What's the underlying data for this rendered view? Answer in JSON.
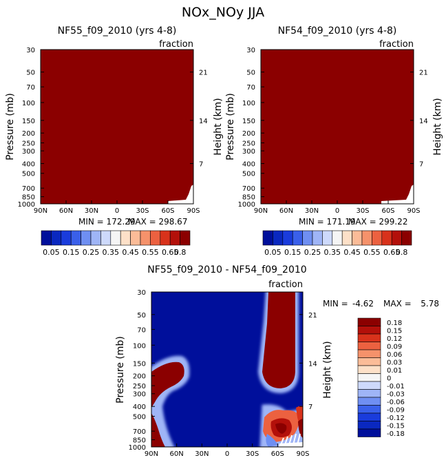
{
  "title": "NOx_NOy JJA",
  "colors": {
    "dark_red": "#8b0000",
    "dark_blue": "#000f9b",
    "mid_blue": "#1a3cdc",
    "white": "#ffffff"
  },
  "chart_data": [
    {
      "type": "heatmap",
      "title": "NF55_f09_2010 (yrs 4-8)",
      "units": "fraction",
      "ylabel": "Pressure (mb)",
      "y2label": "Height (km)",
      "x_tick_labels": [
        "90N",
        "60N",
        "30N",
        "0",
        "30S",
        "60S",
        "90S"
      ],
      "x_tick_values": [
        90,
        60,
        30,
        0,
        -30,
        -60,
        -90
      ],
      "y_tick_labels": [
        "30",
        "50",
        "70",
        "100",
        "150",
        "200",
        "250",
        "300",
        "400",
        "500",
        "700",
        "850",
        "1000"
      ],
      "y_tick_values": [
        30,
        50,
        70,
        100,
        150,
        200,
        250,
        300,
        400,
        500,
        700,
        850,
        1000
      ],
      "y2_tick_labels": [
        "21",
        "14",
        "7"
      ],
      "y2_tick_pressures": [
        50,
        150,
        400
      ],
      "ylim": [
        1000,
        30
      ],
      "min_text": "MIN = 172.29",
      "max_text": "MAX = 298.67",
      "min": 172.29,
      "max": 298.67,
      "field_color": "#8b0000",
      "colorbar": {
        "labels": [
          "0.05",
          "0.15",
          "0.25",
          "0.35",
          "0.45",
          "0.55",
          "0.65",
          "0.8"
        ],
        "colors": [
          "#000f9b",
          "#0a28c0",
          "#1a3cdc",
          "#3a60ea",
          "#6f8ff2",
          "#9fb5f7",
          "#cdd9fb",
          "#f5f5f5",
          "#fde0c8",
          "#fbbc98",
          "#f5926b",
          "#ec6140",
          "#d8321b",
          "#b3100a",
          "#8b0000"
        ]
      }
    },
    {
      "type": "heatmap",
      "title": "NF54_f09_2010 (yrs 4-8)",
      "units": "fraction",
      "ylabel": "Pressure (mb)",
      "y2label": "Height (km)",
      "x_tick_labels": [
        "90N",
        "60N",
        "30N",
        "0",
        "30S",
        "60S",
        "90S"
      ],
      "x_tick_values": [
        90,
        60,
        30,
        0,
        -30,
        -60,
        -90
      ],
      "y_tick_labels": [
        "30",
        "50",
        "70",
        "100",
        "150",
        "200",
        "250",
        "300",
        "400",
        "500",
        "700",
        "850",
        "1000"
      ],
      "y_tick_values": [
        30,
        50,
        70,
        100,
        150,
        200,
        250,
        300,
        400,
        500,
        700,
        850,
        1000
      ],
      "y2_tick_labels": [
        "21",
        "14",
        "7"
      ],
      "y2_tick_pressures": [
        50,
        150,
        400
      ],
      "ylim": [
        1000,
        30
      ],
      "min_text": "MIN = 171.19",
      "max_text": "MAX = 299.22",
      "min": 171.19,
      "max": 299.22,
      "field_color": "#8b0000",
      "colorbar": {
        "labels": [
          "0.05",
          "0.15",
          "0.25",
          "0.35",
          "0.45",
          "0.55",
          "0.65",
          "0.8"
        ],
        "colors": [
          "#000f9b",
          "#0a28c0",
          "#1a3cdc",
          "#3a60ea",
          "#6f8ff2",
          "#9fb5f7",
          "#cdd9fb",
          "#f5f5f5",
          "#fde0c8",
          "#fbbc98",
          "#f5926b",
          "#ec6140",
          "#d8321b",
          "#b3100a",
          "#8b0000"
        ]
      }
    },
    {
      "type": "heatmap",
      "title": "NF55_f09_2010 - NF54_f09_2010",
      "units": "fraction",
      "ylabel": "Pressure (mb)",
      "y2label": "Height (km)",
      "x_tick_labels": [
        "90N",
        "60N",
        "30N",
        "0",
        "30S",
        "60S",
        "90S"
      ],
      "x_tick_values": [
        90,
        60,
        30,
        0,
        -30,
        -60,
        -90
      ],
      "y_tick_labels": [
        "30",
        "50",
        "70",
        "100",
        "150",
        "200",
        "250",
        "300",
        "400",
        "500",
        "700",
        "850",
        "1000"
      ],
      "y_tick_values": [
        30,
        50,
        70,
        100,
        150,
        200,
        250,
        300,
        400,
        500,
        700,
        850,
        1000
      ],
      "y2_tick_labels": [
        "21",
        "14",
        "7"
      ],
      "y2_tick_pressures": [
        50,
        150,
        400
      ],
      "ylim": [
        1000,
        30
      ],
      "min_label": "MIN =",
      "min_value": "-4.62",
      "max_label": "MAX =",
      "max_value": "5.78",
      "min": -4.62,
      "max": 5.78,
      "colorbar": {
        "labels": [
          "0.18",
          "0.15",
          "0.12",
          "0.09",
          "0.06",
          "0.03",
          "0.01",
          "0",
          "-0.01",
          "-0.03",
          "-0.06",
          "-0.09",
          "-0.12",
          "-0.15",
          "-0.18"
        ],
        "colors": [
          "#8b0000",
          "#b3100a",
          "#d8321b",
          "#ec6140",
          "#f5926b",
          "#fbbc98",
          "#fde0c8",
          "#f5f5f5",
          "#cdd9fb",
          "#9fb5f7",
          "#6f8ff2",
          "#3a60ea",
          "#1a3cdc",
          "#0a28c0",
          "#000f9b"
        ]
      }
    }
  ]
}
